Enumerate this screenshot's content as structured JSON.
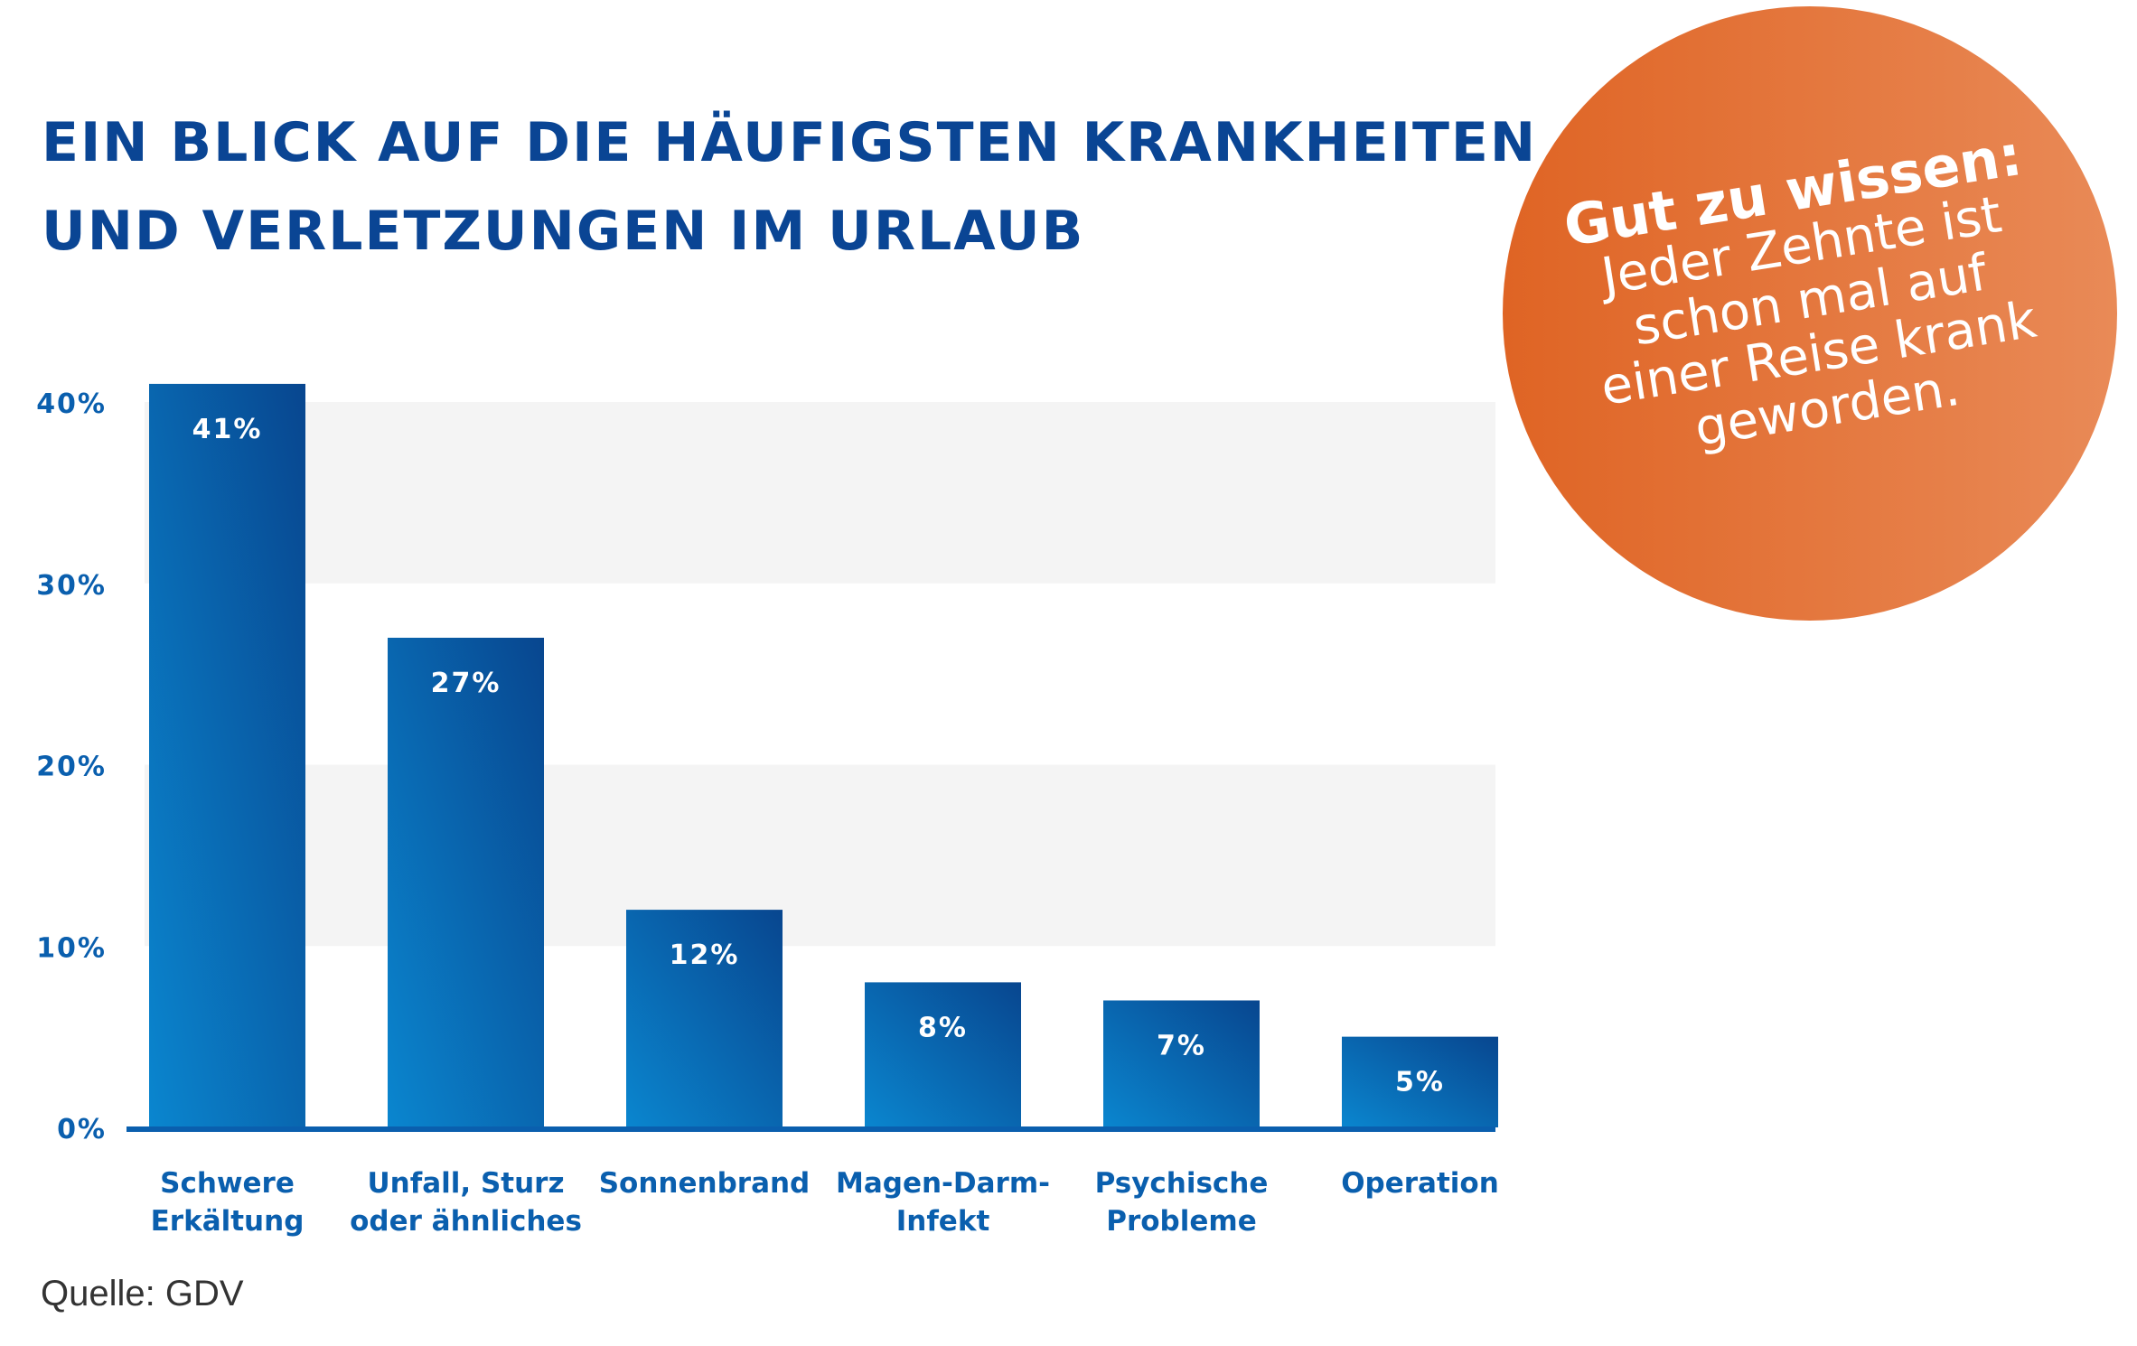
{
  "title": {
    "line1": "EIN BLICK AUF DIE HÄUFIGSTEN KRANKHEITEN",
    "line2": "UND  VERLETZUNGEN IM URLAUB"
  },
  "source": "Quelle: GDV",
  "badge": {
    "heading": "Gut zu wissen:",
    "lines": [
      "Jeder Zehnte ist",
      "schon mal auf",
      "einer Reise krank",
      "geworden."
    ],
    "color_start": "#df6424",
    "color_end": "#e98a57"
  },
  "colors": {
    "title": "#0a4594",
    "bar_dark": "#08468f",
    "bar_light": "#0a86cf",
    "axis": "#0a5fae",
    "band": "#f4f4f4"
  },
  "chart_data": {
    "type": "bar",
    "categories": [
      [
        "Schwere",
        "Erkältung"
      ],
      [
        "Unfall, Sturz",
        "oder ähnliches"
      ],
      [
        "Sonnenbrand"
      ],
      [
        "Magen-Darm-",
        "Infekt"
      ],
      [
        "Psychische",
        "Probleme"
      ],
      [
        "Operation"
      ]
    ],
    "values": [
      41,
      27,
      12,
      8,
      7,
      5
    ],
    "value_labels": [
      "41%",
      "27%",
      "12%",
      "8%",
      "7%",
      "5%"
    ],
    "yticks": [
      0,
      10,
      20,
      30,
      40
    ],
    "ytick_labels": [
      "0%",
      "10%",
      "20%",
      "30%",
      "40%"
    ],
    "ylim": [
      0,
      40
    ],
    "grid": "alternating horizontal bands (10–20%, 30–40%)",
    "legend": "none"
  }
}
